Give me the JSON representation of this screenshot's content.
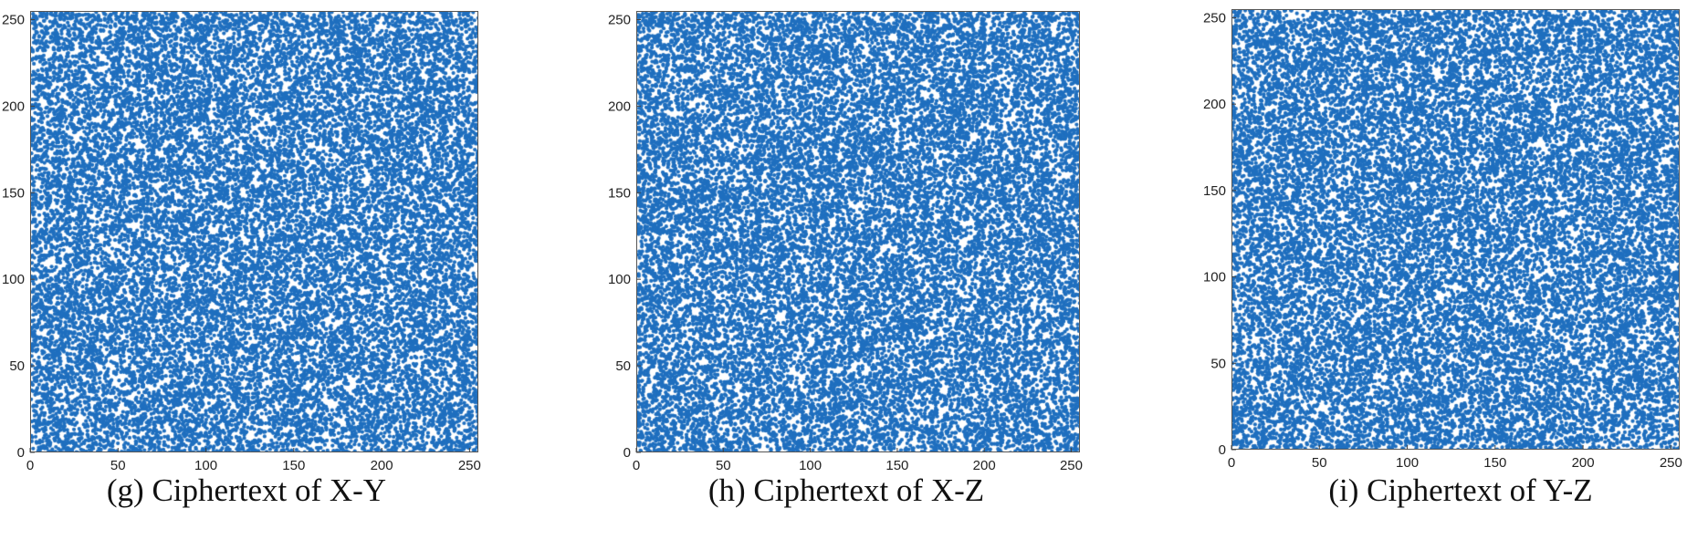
{
  "chart_data": [
    {
      "type": "scatter",
      "caption": "(g) Ciphertext of X-Y",
      "title": "",
      "xlabel": "",
      "ylabel": "",
      "xlim": [
        0,
        255
      ],
      "ylim": [
        0,
        255
      ],
      "x_ticks": [
        0,
        50,
        100,
        150,
        200,
        250
      ],
      "y_ticks": [
        0,
        50,
        100,
        150,
        200,
        250
      ],
      "point_count": 65536,
      "distribution": "uniform",
      "marker_color": "#1f6fbf",
      "grid": false
    },
    {
      "type": "scatter",
      "caption": "(h) Ciphertext of X-Z",
      "title": "",
      "xlabel": "",
      "ylabel": "",
      "xlim": [
        0,
        255
      ],
      "ylim": [
        0,
        255
      ],
      "x_ticks": [
        0,
        50,
        100,
        150,
        200,
        250
      ],
      "y_ticks": [
        0,
        50,
        100,
        150,
        200,
        250
      ],
      "point_count": 65536,
      "distribution": "uniform",
      "marker_color": "#1f6fbf",
      "grid": false
    },
    {
      "type": "scatter",
      "caption": "(i) Ciphertext of Y-Z",
      "title": "",
      "xlabel": "",
      "ylabel": "",
      "xlim": [
        0,
        255
      ],
      "ylim": [
        0,
        255
      ],
      "x_ticks": [
        0,
        50,
        100,
        150,
        200,
        250
      ],
      "y_ticks": [
        0,
        50,
        100,
        150,
        200,
        250
      ],
      "point_count": 65536,
      "distribution": "uniform",
      "marker_color": "#1f6fbf",
      "grid": false
    }
  ]
}
